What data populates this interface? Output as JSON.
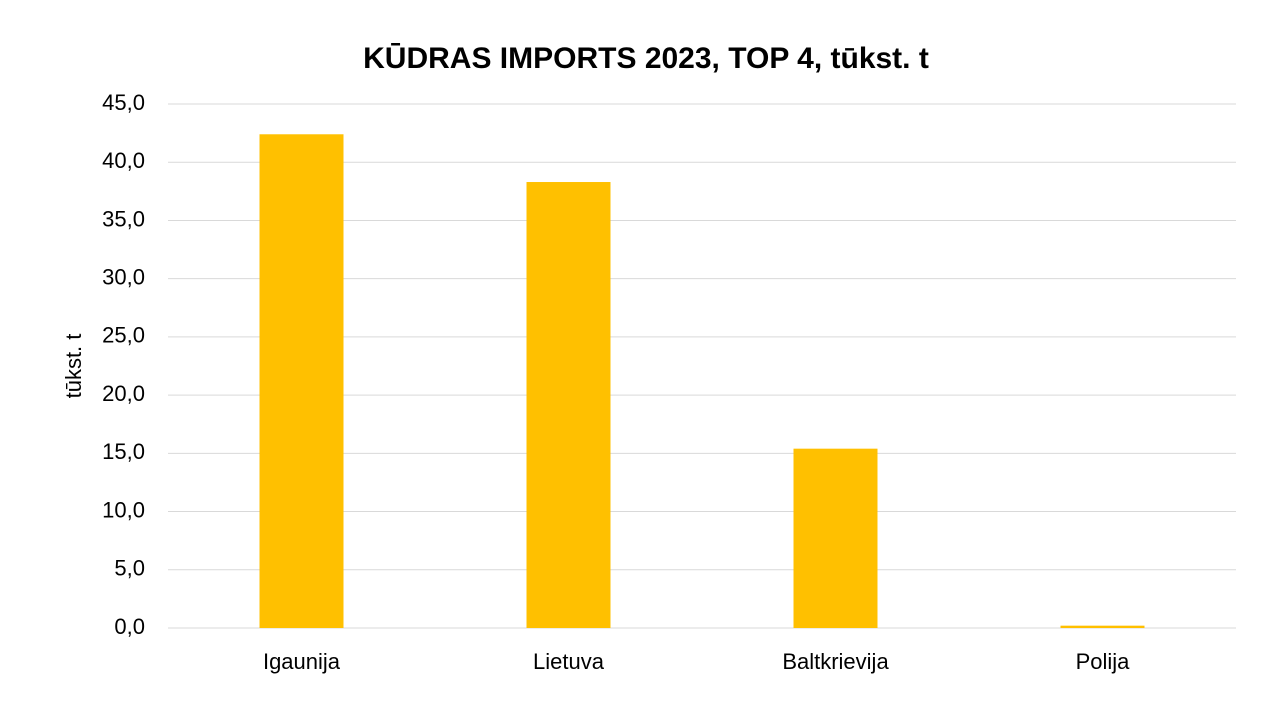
{
  "chart_data": {
    "type": "bar",
    "title": "KŪDRAS IMPORTS 2023, TOP 4, tūkst. t",
    "y_label": "tūkst. t",
    "categories": [
      "Igaunija",
      "Lietuva",
      "Baltkrievija",
      "Polija"
    ],
    "values": [
      42.4,
      38.3,
      15.4,
      0.2
    ],
    "color": "#ffc000",
    "ylim": [
      0,
      45
    ],
    "yticks": [
      {
        "value": 0,
        "label": "0,0"
      },
      {
        "value": 5,
        "label": "5,0"
      },
      {
        "value": 10,
        "label": "10,0"
      },
      {
        "value": 15,
        "label": "15,0"
      },
      {
        "value": 20,
        "label": "20,0"
      },
      {
        "value": 25,
        "label": "25,0"
      },
      {
        "value": 30,
        "label": "30,0"
      },
      {
        "value": 35,
        "label": "35,0"
      },
      {
        "value": 40,
        "label": "40,0"
      },
      {
        "value": 45,
        "label": "45,0"
      }
    ],
    "grid": true
  }
}
